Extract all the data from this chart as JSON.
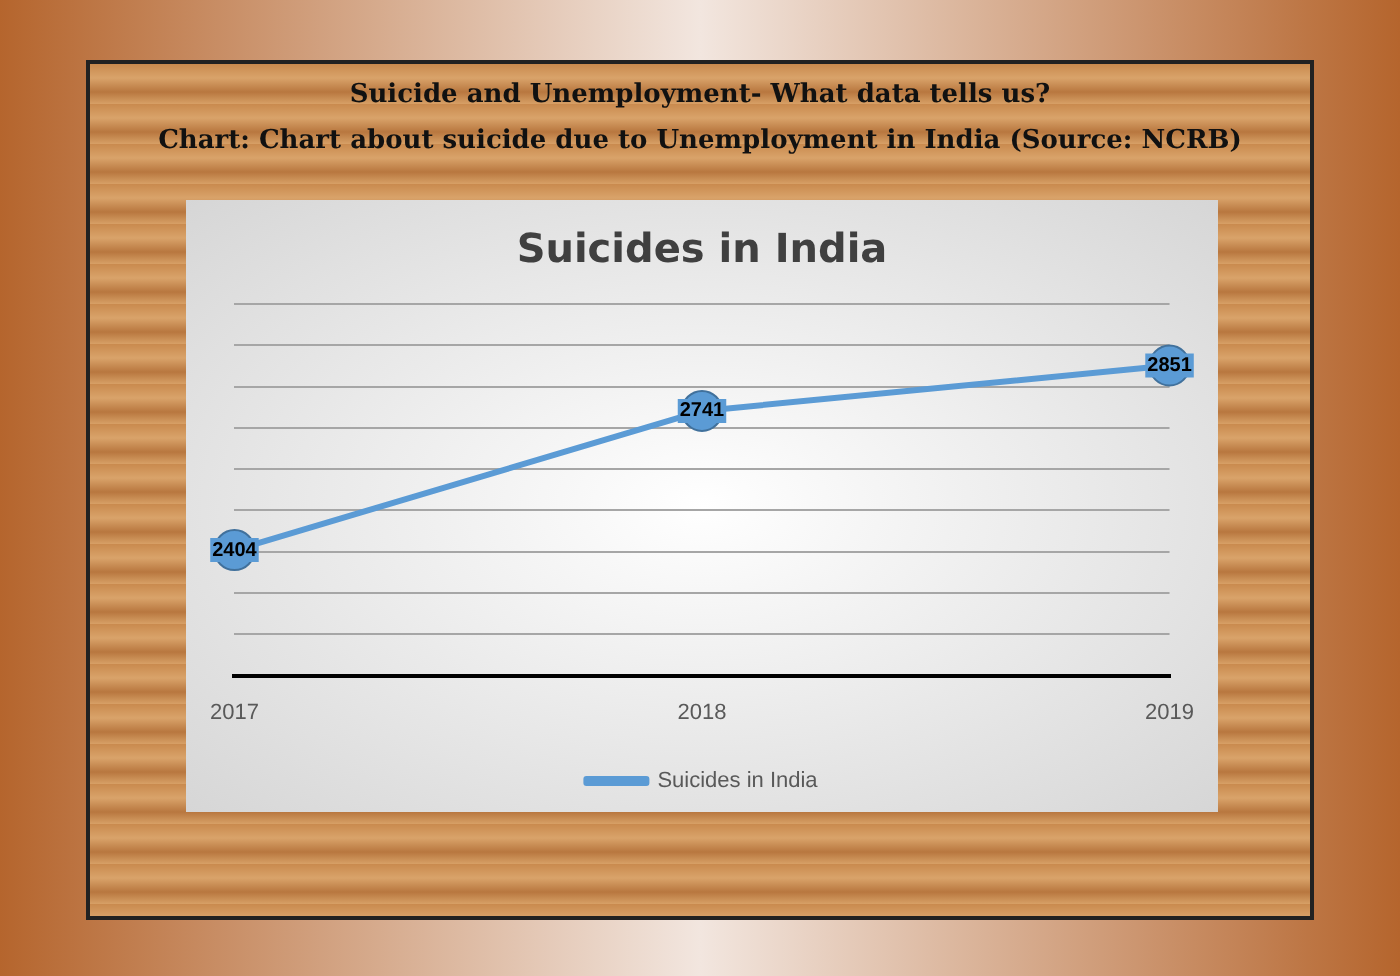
{
  "chart_data": {
    "type": "line",
    "title": "Suicides in India",
    "subtitle": "Suicide and Unemployment- What data tells us?",
    "annotations": [
      "Chart: Chart about suicide due to Unemployment in India (Source: NCRB)"
    ],
    "categories": [
      "2017",
      "2018",
      "2019"
    ],
    "series": [
      {
        "name": "Suicides in India",
        "color": "#5b9bd5",
        "values": [
          2404,
          2741,
          2851
        ]
      }
    ],
    "ylim": [
      2100,
      3000
    ],
    "yticks": [
      {
        "value": 2100,
        "label": null
      },
      {
        "value": 2200,
        "label": null
      },
      {
        "value": 2300,
        "label": null
      },
      {
        "value": 2400,
        "label": null
      },
      {
        "value": 2500,
        "label": null
      },
      {
        "value": 2600,
        "label": null
      },
      {
        "value": 2700,
        "label": null
      },
      {
        "value": 2800,
        "label": null
      },
      {
        "value": 2900,
        "label": null
      },
      {
        "value": 3000,
        "label": null
      }
    ],
    "tick_labels": "x",
    "grid": "y",
    "legend": "bottom",
    "marker": "circle",
    "line_style": "solid",
    "data_labels": true
  }
}
